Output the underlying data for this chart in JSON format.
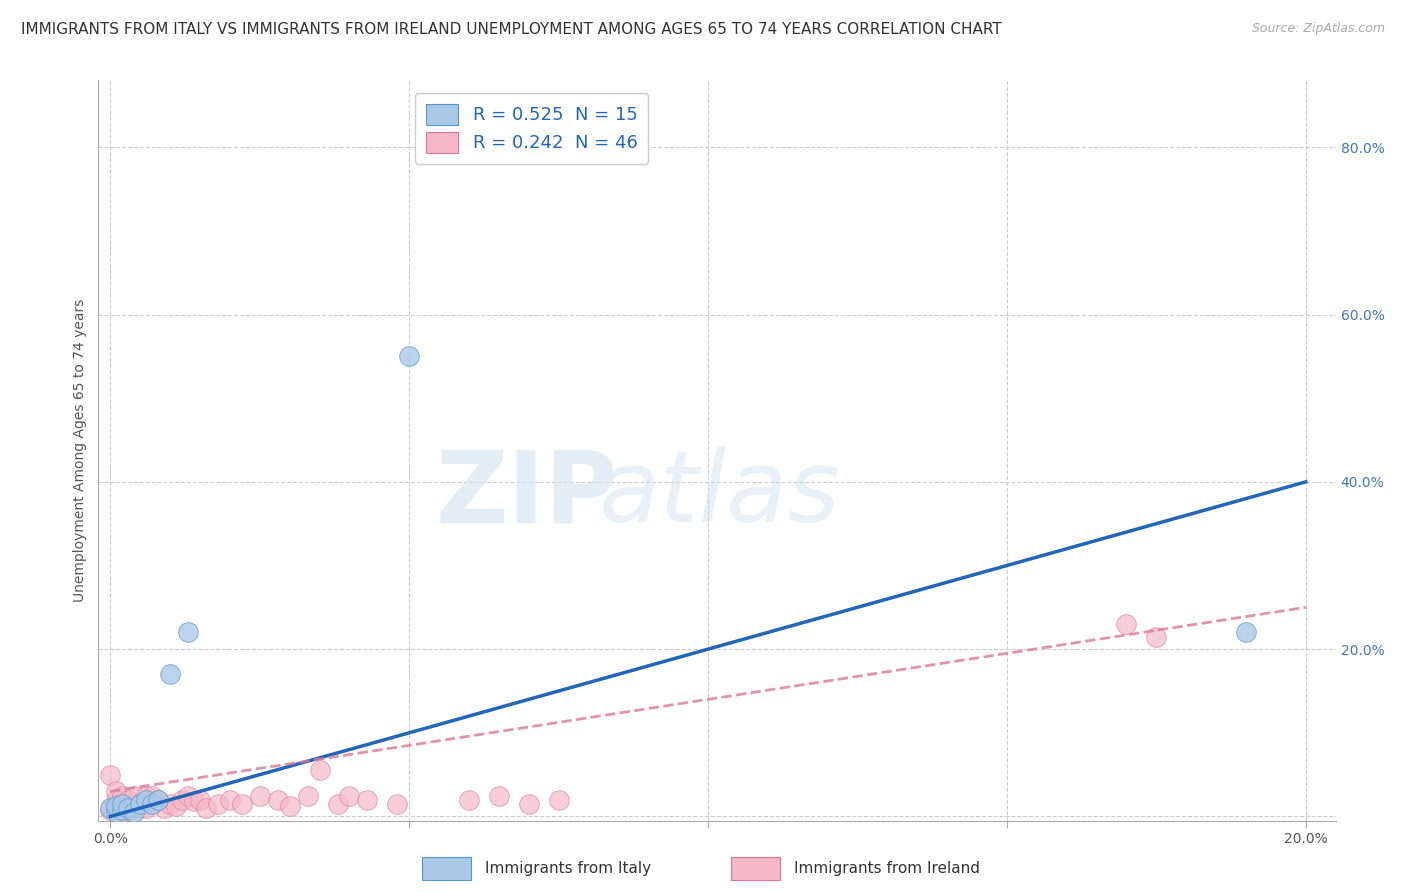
{
  "title": "IMMIGRANTS FROM ITALY VS IMMIGRANTS FROM IRELAND UNEMPLOYMENT AMONG AGES 65 TO 74 YEARS CORRELATION CHART",
  "source": "Source: ZipAtlas.com",
  "ylabel": "Unemployment Among Ages 65 to 74 years",
  "xlabel_italy": "Immigrants from Italy",
  "xlabel_ireland": "Immigrants from Ireland",
  "xlim": [
    -0.002,
    0.205
  ],
  "ylim": [
    -0.005,
    0.88
  ],
  "xticks": [
    0.0,
    0.05,
    0.1,
    0.15,
    0.2
  ],
  "xtick_labels": [
    "0.0%",
    "",
    "",
    "",
    "20.0%"
  ],
  "yticks": [
    0.0,
    0.2,
    0.4,
    0.6,
    0.8
  ],
  "ytick_labels": [
    "",
    "20.0%",
    "40.0%",
    "60.0%",
    "80.0%"
  ],
  "italy_R": 0.525,
  "italy_N": 15,
  "ireland_R": 0.242,
  "ireland_N": 46,
  "italy_dot_color": "#aac8e8",
  "italy_dot_edge": "#5599cc",
  "italy_line_color": "#2266bb",
  "ireland_dot_color": "#f4b8c8",
  "ireland_dot_edge": "#dd7799",
  "ireland_line_color": "#dd7799",
  "italy_scatter_x": [
    0.0,
    0.001,
    0.001,
    0.002,
    0.002,
    0.003,
    0.004,
    0.005,
    0.006,
    0.007,
    0.008,
    0.01,
    0.013,
    0.05,
    0.19
  ],
  "italy_scatter_y": [
    0.01,
    0.005,
    0.012,
    0.008,
    0.015,
    0.01,
    0.005,
    0.015,
    0.02,
    0.015,
    0.02,
    0.17,
    0.22,
    0.55,
    0.22
  ],
  "ireland_scatter_x": [
    0.0,
    0.0,
    0.001,
    0.001,
    0.001,
    0.002,
    0.002,
    0.002,
    0.003,
    0.003,
    0.003,
    0.004,
    0.004,
    0.005,
    0.005,
    0.006,
    0.006,
    0.007,
    0.007,
    0.008,
    0.009,
    0.01,
    0.011,
    0.012,
    0.013,
    0.014,
    0.015,
    0.016,
    0.018,
    0.02,
    0.022,
    0.025,
    0.028,
    0.03,
    0.033,
    0.035,
    0.038,
    0.04,
    0.043,
    0.048,
    0.06,
    0.065,
    0.07,
    0.075,
    0.17,
    0.175
  ],
  "ireland_scatter_y": [
    0.05,
    0.008,
    0.01,
    0.02,
    0.03,
    0.015,
    0.025,
    0.005,
    0.01,
    0.02,
    0.008,
    0.015,
    0.025,
    0.01,
    0.015,
    0.025,
    0.01,
    0.015,
    0.025,
    0.02,
    0.01,
    0.015,
    0.012,
    0.02,
    0.025,
    0.018,
    0.02,
    0.01,
    0.015,
    0.02,
    0.015,
    0.025,
    0.02,
    0.012,
    0.025,
    0.055,
    0.015,
    0.025,
    0.02,
    0.015,
    0.02,
    0.025,
    0.015,
    0.02,
    0.23,
    0.215
  ],
  "italy_line_x0": 0.0,
  "italy_line_y0": 0.0,
  "italy_line_x1": 0.2,
  "italy_line_y1": 0.4,
  "ireland_line_x0": 0.0,
  "ireland_line_y0": 0.03,
  "ireland_line_x1": 0.2,
  "ireland_line_y1": 0.25,
  "watermark_zip": "ZIP",
  "watermark_atlas": "atlas",
  "background_color": "#ffffff",
  "grid_color": "#cccccc",
  "title_fontsize": 11,
  "source_fontsize": 9,
  "axis_label_fontsize": 10,
  "tick_fontsize": 10,
  "legend_fontsize": 13
}
